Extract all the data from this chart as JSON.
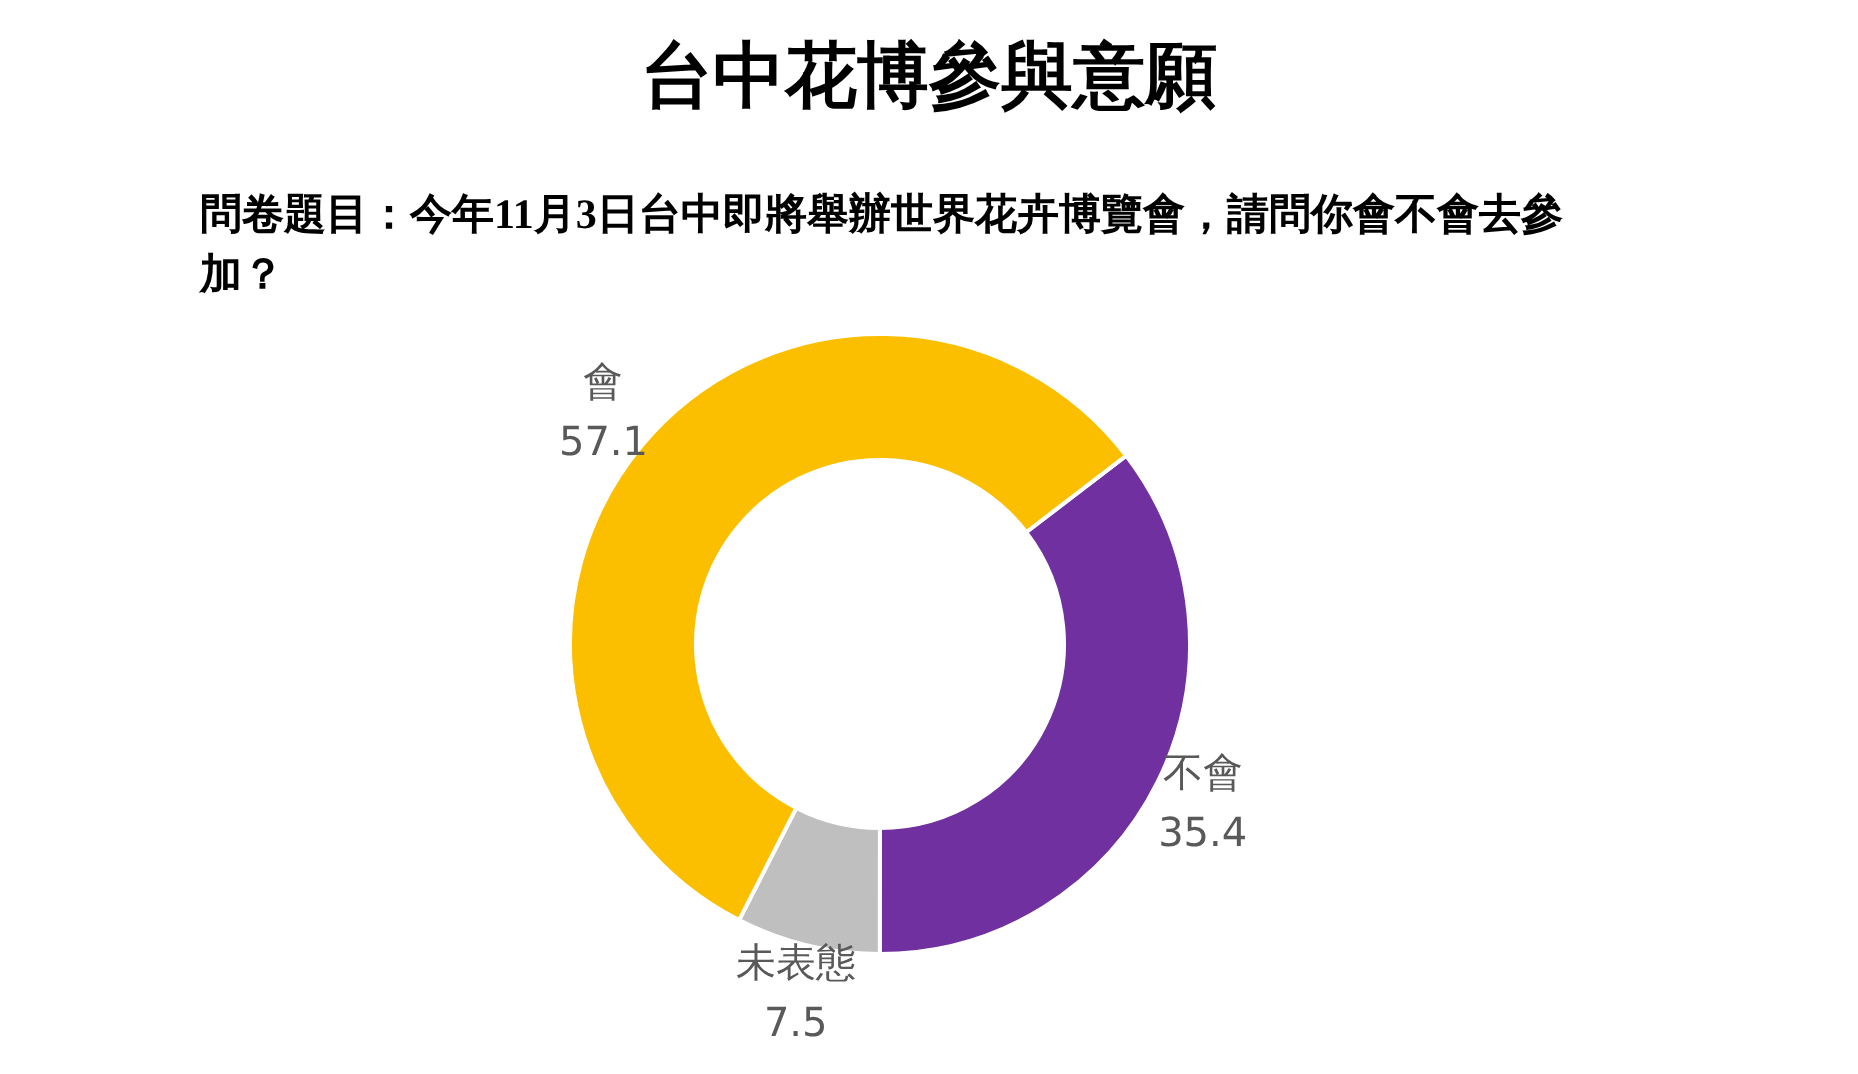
{
  "chart_data": {
    "type": "donut",
    "title": "台中花博參與意願",
    "subtitle": "問卷題目：今年11月3日台中即將舉辦世界花卉博覽會，請問你會不會去參加？",
    "categories": [
      "不會",
      "未表態",
      "會"
    ],
    "values": [
      35.4,
      7.5,
      57.1
    ],
    "colors": [
      "#7030a0",
      "#bfbfbf",
      "#fbbf00"
    ],
    "data_labels": true
  }
}
